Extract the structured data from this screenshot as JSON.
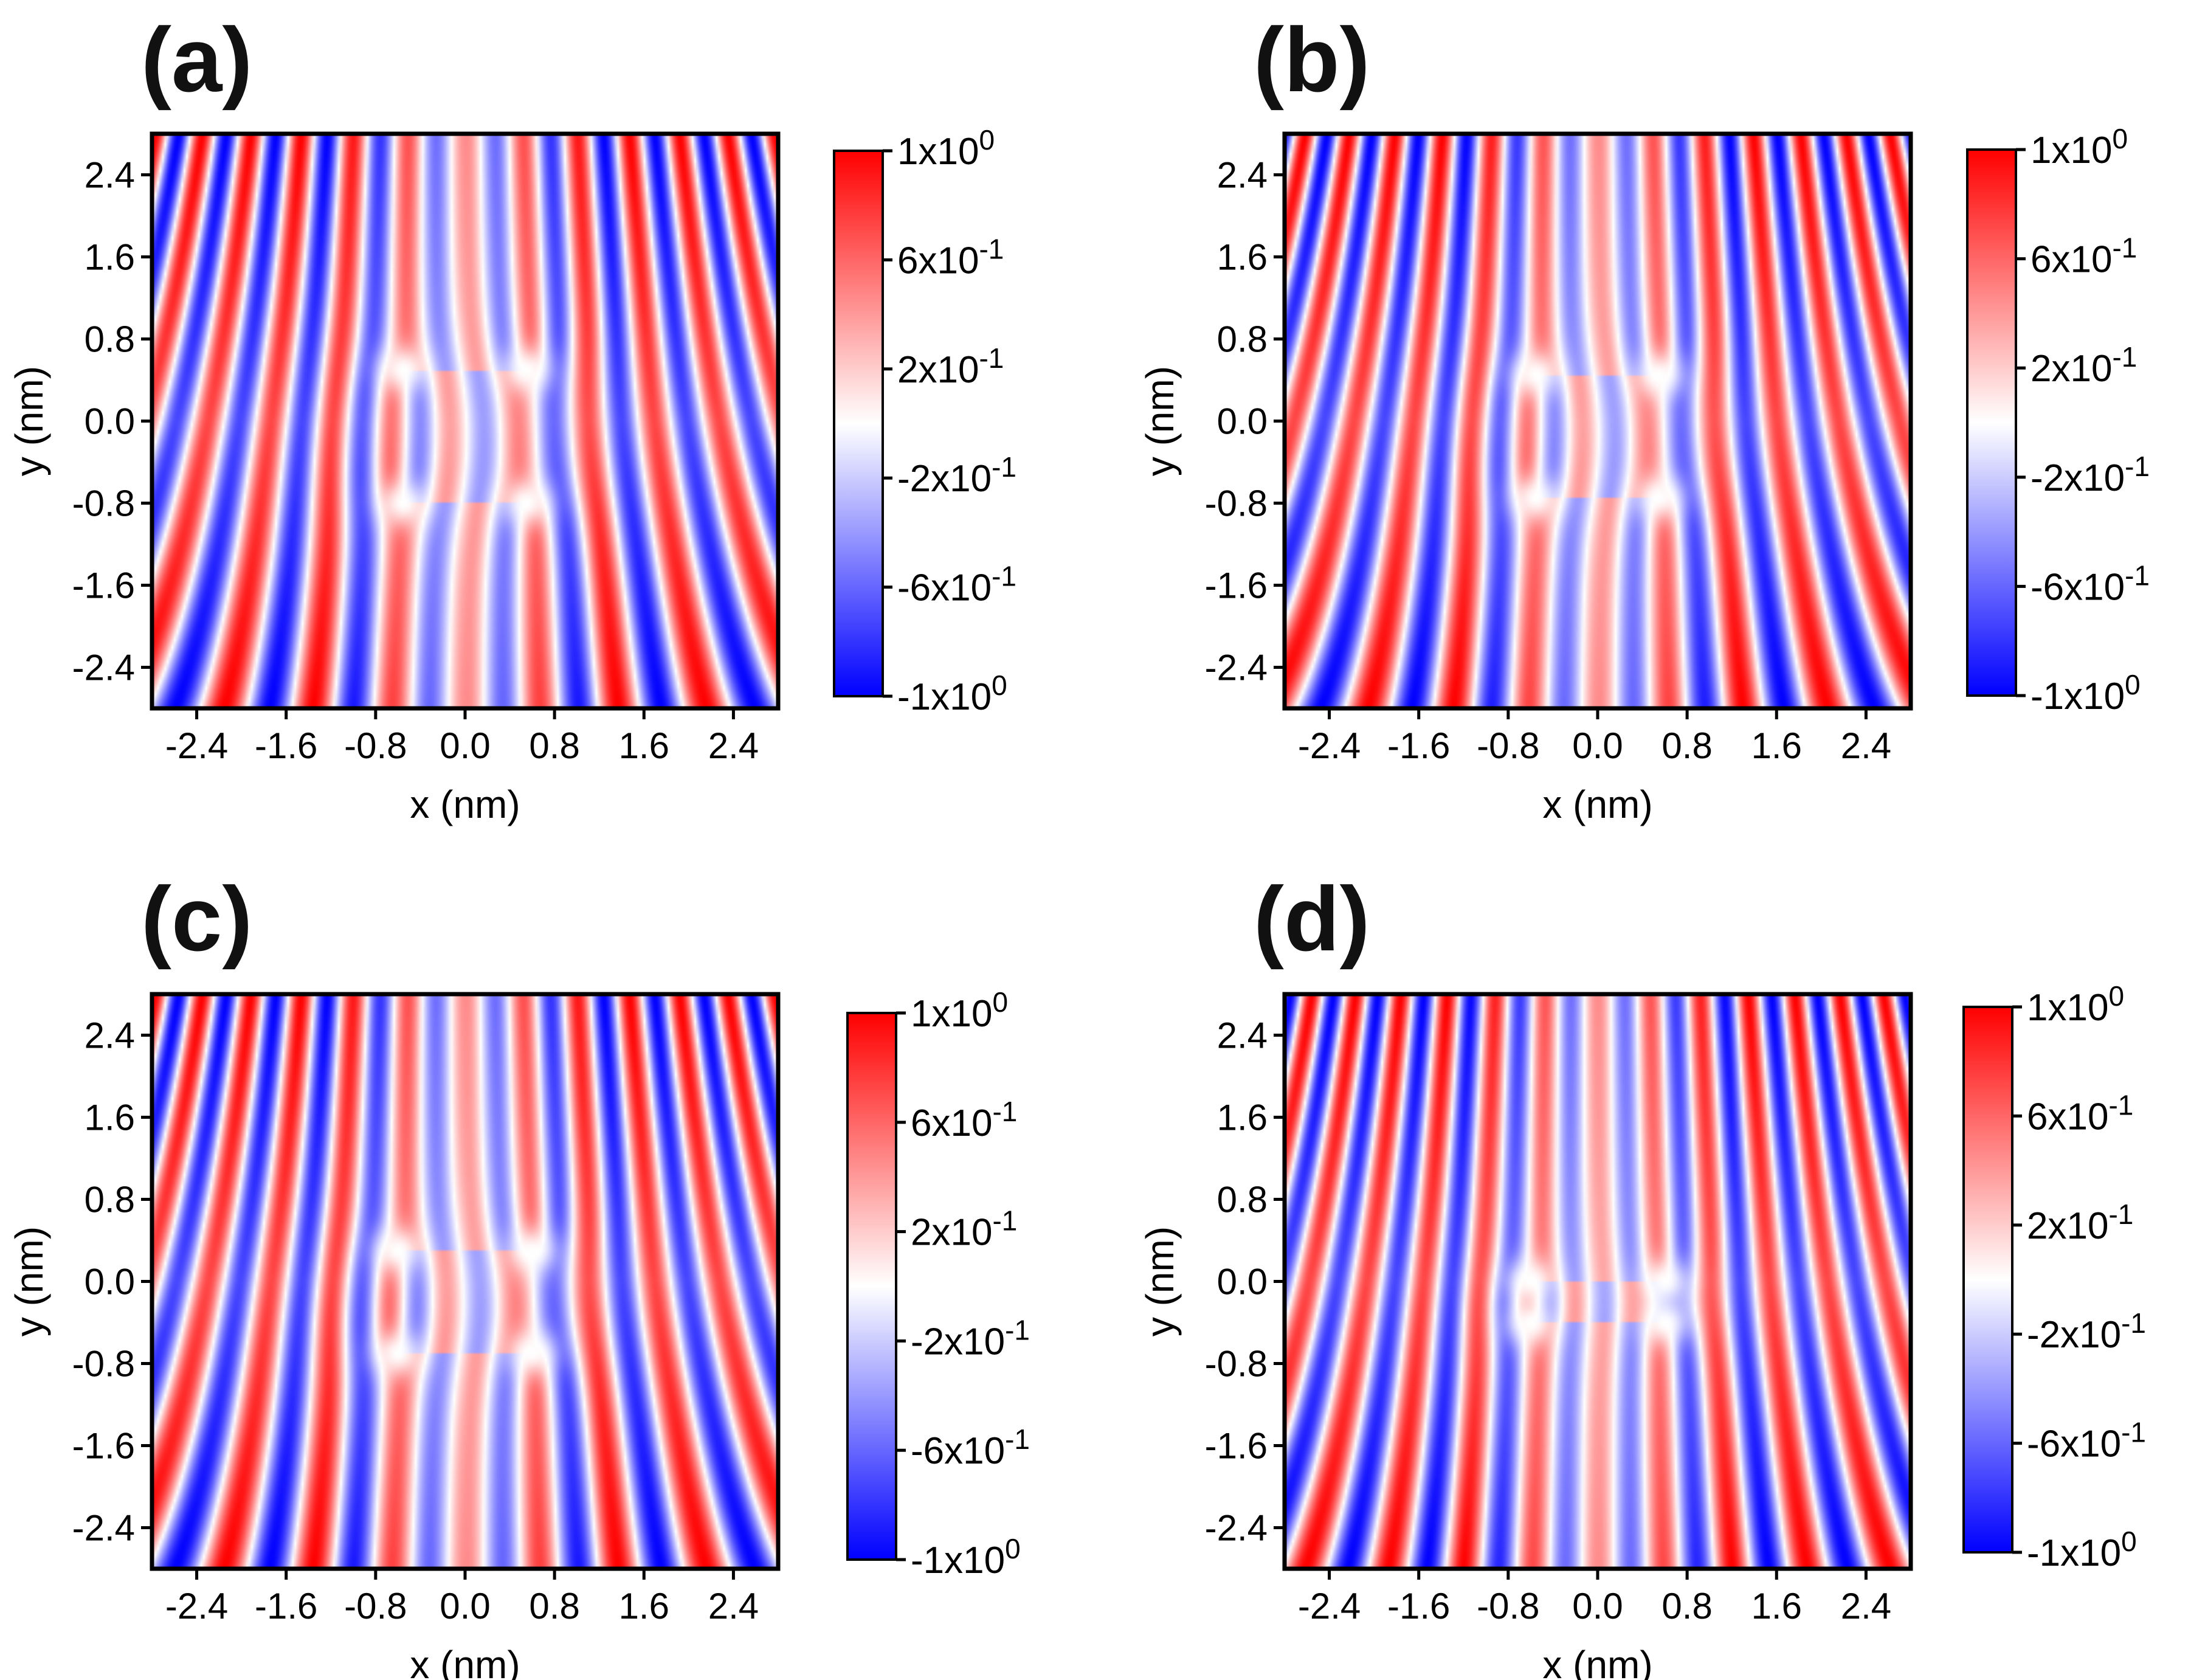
{
  "chart_data": [
    {
      "type": "heatmap",
      "panel_label": "(a)",
      "xlabel": "x (nm)",
      "ylabel": "y (nm)",
      "xlim": [
        -2.8,
        2.8
      ],
      "ylim": [
        -2.8,
        2.8
      ],
      "xticks": [
        "-2.4",
        "-1.6",
        "-0.8",
        "0.0",
        "0.8",
        "1.6",
        "2.4"
      ],
      "yticks": [
        "2.4",
        "1.6",
        "0.8",
        "0.0",
        "-0.8",
        "-1.6",
        "-2.4"
      ],
      "colorbar": {
        "range": [
          -1,
          1
        ],
        "ticks": [
          "1x10^0",
          "6x10^-1",
          "2x10^-1",
          "-2x10^-1",
          "-6x10^-1",
          "-1x10^0"
        ],
        "colormap": "bwr"
      },
      "field": {
        "wavenumber": 11.0,
        "curvature": 0.032,
        "vortex_x": [
          -0.55,
          0.55
        ],
        "vortex_y": [
          0.5,
          -0.8
        ]
      }
    },
    {
      "type": "heatmap",
      "panel_label": "(b)",
      "xlabel": "x (nm)",
      "ylabel": "y (nm)",
      "xlim": [
        -2.8,
        2.8
      ],
      "ylim": [
        -2.8,
        2.8
      ],
      "xticks": [
        "-2.4",
        "-1.6",
        "-0.8",
        "0.0",
        "0.8",
        "1.6",
        "2.4"
      ],
      "yticks": [
        "2.4",
        "1.6",
        "0.8",
        "0.0",
        "-0.8",
        "-1.6",
        "-2.4"
      ],
      "colorbar": {
        "range": [
          -1,
          1
        ],
        "ticks": [
          "1x10^0",
          "6x10^-1",
          "2x10^-1",
          "-2x10^-1",
          "-6x10^-1",
          "-1x10^0"
        ],
        "colormap": "bwr"
      },
      "field": {
        "wavenumber": 11.6,
        "curvature": 0.036,
        "vortex_x": [
          -0.55,
          0.55
        ],
        "vortex_y": [
          0.45,
          -0.75
        ]
      }
    },
    {
      "type": "heatmap",
      "panel_label": "(c)",
      "xlabel": "x (nm)",
      "ylabel": "y (nm)",
      "xlim": [
        -2.8,
        2.8
      ],
      "ylim": [
        -2.8,
        2.8
      ],
      "xticks": [
        "-2.4",
        "-1.6",
        "-0.8",
        "0.0",
        "0.8",
        "1.6",
        "2.4"
      ],
      "yticks": [
        "2.4",
        "1.6",
        "0.8",
        "0.0",
        "-0.8",
        "-1.6",
        "-2.4"
      ],
      "colorbar": {
        "range": [
          -1,
          1
        ],
        "ticks": [
          "1x10^0",
          "6x10^-1",
          "2x10^-1",
          "-2x10^-1",
          "-6x10^-1",
          "-1x10^0"
        ],
        "colormap": "bwr"
      },
      "field": {
        "wavenumber": 11.0,
        "curvature": 0.032,
        "vortex_x": [
          -0.6,
          0.6
        ],
        "vortex_y": [
          0.3,
          -0.7
        ]
      }
    },
    {
      "type": "heatmap",
      "panel_label": "(d)",
      "xlabel": "x (nm)",
      "ylabel": "y (nm)",
      "xlim": [
        -2.8,
        2.8
      ],
      "ylim": [
        -2.8,
        2.8
      ],
      "xticks": [
        "-2.4",
        "-1.6",
        "-0.8",
        "0.0",
        "0.8",
        "1.6",
        "2.4"
      ],
      "yticks": [
        "2.4",
        "1.6",
        "0.8",
        "0.0",
        "-0.8",
        "-1.6",
        "-2.4"
      ],
      "colorbar": {
        "range": [
          -1,
          1
        ],
        "ticks": [
          "1x10^0",
          "6x10^-1",
          "2x10^-1",
          "-2x10^-1",
          "-6x10^-1",
          "-1x10^0"
        ],
        "colormap": "bwr"
      },
      "field": {
        "wavenumber": 12.2,
        "curvature": 0.03,
        "vortex_x": [
          -0.6,
          0.6
        ],
        "vortex_y": [
          0.0,
          -0.4
        ]
      }
    }
  ]
}
